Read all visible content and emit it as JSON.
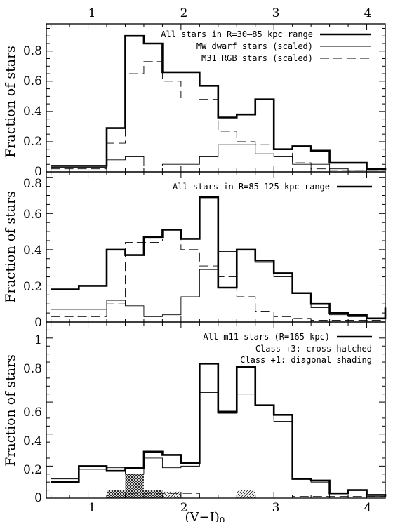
{
  "xlabel_main": "(V−I)",
  "xlabel_sub": "0",
  "x_ticks": [
    1,
    2,
    3,
    4
  ],
  "xlim": [
    0.55,
    4.2
  ],
  "chart_data": [
    {
      "type": "step",
      "ylabel": "Fraction of stars",
      "ylim": [
        0,
        0.98
      ],
      "y_ticks": [
        0,
        0.2,
        0.4,
        0.6,
        0.8
      ],
      "y_tick_labels": [
        "0",
        "0.2",
        "0.4",
        "0.6",
        "0.8"
      ],
      "bins": [
        0.6,
        0.9,
        1.2,
        1.4,
        1.6,
        1.8,
        2.0,
        2.2,
        2.4,
        2.6,
        2.8,
        3.0,
        3.2,
        3.4,
        3.6,
        3.8,
        4.0,
        4.2
      ],
      "series": [
        {
          "label": "All stars in R=30–85 kpc range",
          "style": "thick",
          "values": [
            0.04,
            0.04,
            0.29,
            0.9,
            0.85,
            0.66,
            0.66,
            0.57,
            0.36,
            0.38,
            0.48,
            0.15,
            0.17,
            0.14,
            0.06,
            0.06,
            0.02,
            0.01
          ]
        },
        {
          "label": "MW dwarf stars (scaled)",
          "style": "thin",
          "values": [
            0.03,
            0.03,
            0.08,
            0.1,
            0.04,
            0.05,
            0.05,
            0.1,
            0.18,
            0.18,
            0.12,
            0.1,
            0.05,
            0.05,
            0.02,
            0.01,
            0.01,
            0.01
          ]
        },
        {
          "label": "M31 RGB stars (scaled)",
          "style": "dashed",
          "values": [
            0.02,
            0.02,
            0.19,
            0.65,
            0.73,
            0.6,
            0.49,
            0.48,
            0.27,
            0.2,
            0.18,
            0.15,
            0.06,
            0.02,
            0.01,
            0.01,
            0.01,
            0.01
          ]
        }
      ]
    },
    {
      "type": "step",
      "ylabel": "Fraction of stars",
      "ylim": [
        0,
        0.83
      ],
      "y_ticks": [
        0,
        0.2,
        0.4,
        0.6,
        0.8
      ],
      "y_tick_labels": [
        "0",
        "0.2",
        "0.4",
        "0.6",
        "0.8"
      ],
      "bins": [
        0.6,
        0.9,
        1.2,
        1.4,
        1.6,
        1.8,
        2.0,
        2.2,
        2.4,
        2.6,
        2.8,
        3.0,
        3.2,
        3.4,
        3.6,
        3.8,
        4.0,
        4.2
      ],
      "series": [
        {
          "label": "All stars in R=85–125 kpc range",
          "style": "thick",
          "values": [
            0.18,
            0.2,
            0.4,
            0.37,
            0.47,
            0.51,
            0.46,
            0.69,
            0.19,
            0.4,
            0.34,
            0.27,
            0.16,
            0.1,
            0.05,
            0.04,
            0.02,
            0.08
          ]
        },
        {
          "label": "MW dwarf stars (scaled)",
          "style": "thin",
          "values": [
            0.07,
            0.07,
            0.12,
            0.09,
            0.03,
            0.04,
            0.14,
            0.29,
            0.39,
            0.4,
            0.33,
            0.25,
            0.16,
            0.08,
            0.04,
            0.03,
            0.02,
            0.02
          ]
        },
        {
          "label": "M31 RGB stars (scaled)",
          "style": "dashed",
          "values": [
            0.03,
            0.03,
            0.1,
            0.44,
            0.44,
            0.46,
            0.4,
            0.31,
            0.25,
            0.14,
            0.06,
            0.03,
            0.02,
            0.01,
            0.01,
            0.01,
            0.01,
            0.01
          ]
        }
      ]
    },
    {
      "type": "step",
      "ylabel": "Fraction of stars",
      "ylim": [
        0,
        1.1
      ],
      "y_ticks": [
        0,
        0.2,
        0.4,
        0.6,
        0.8,
        1
      ],
      "y_tick_labels": [
        "0",
        "0.2",
        "0.4",
        "0.6",
        "0.8",
        "1"
      ],
      "bins": [
        0.6,
        0.9,
        1.2,
        1.4,
        1.6,
        1.8,
        2.0,
        2.2,
        2.4,
        2.6,
        2.8,
        3.0,
        3.2,
        3.4,
        3.6,
        3.8,
        4.0,
        4.2
      ],
      "series": [
        {
          "label": "All m11 stars (R=165 kpc)",
          "style": "thick",
          "values": [
            0.1,
            0.2,
            0.17,
            0.19,
            0.29,
            0.27,
            0.22,
            0.84,
            0.54,
            0.82,
            0.58,
            0.52,
            0.12,
            0.11,
            0.03,
            0.05,
            0.02,
            0.01
          ]
        },
        {
          "label": "MW dwarf stars (scaled)",
          "style": "thin",
          "values": [
            0.12,
            0.18,
            0.19,
            0.15,
            0.25,
            0.19,
            0.2,
            0.66,
            0.53,
            0.65,
            0.58,
            0.48,
            0.12,
            0.1,
            0.02,
            0.02,
            0.01,
            0.01
          ]
        },
        {
          "label": "M31 RGB stars (scaled)",
          "style": "dashed",
          "values": [
            0.02,
            0.02,
            0.02,
            0.03,
            0.03,
            0.03,
            0.03,
            0.02,
            0.02,
            0.02,
            0.02,
            0.02,
            0.01,
            0.01,
            0.01,
            0.01,
            0.01,
            0.01
          ]
        }
      ],
      "shaded": [
        {
          "label": "Class +3: cross hatched",
          "pattern": "cross",
          "bins": [
            [
              1.2,
              1.4,
              0.05
            ],
            [
              1.4,
              1.6,
              0.15
            ],
            [
              1.6,
              1.8,
              0.05
            ]
          ]
        },
        {
          "label": "Class +1: diagonal shading",
          "pattern": "diagonal",
          "bins": [
            [
              1.8,
              2.0,
              0.04
            ],
            [
              2.6,
              2.8,
              0.05
            ]
          ]
        }
      ]
    }
  ]
}
